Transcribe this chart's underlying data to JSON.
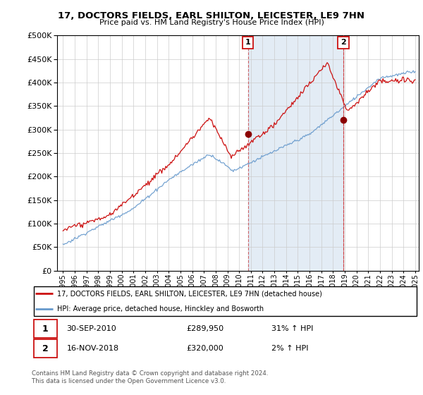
{
  "title": "17, DOCTORS FIELDS, EARL SHILTON, LEICESTER, LE9 7HN",
  "subtitle": "Price paid vs. HM Land Registry's House Price Index (HPI)",
  "legend_line1": "17, DOCTORS FIELDS, EARL SHILTON, LEICESTER, LE9 7HN (detached house)",
  "legend_line2": "HPI: Average price, detached house, Hinckley and Bosworth",
  "annotation1_date": "30-SEP-2010",
  "annotation1_price": "£289,950",
  "annotation1_hpi": "31% ↑ HPI",
  "annotation2_date": "16-NOV-2018",
  "annotation2_price": "£320,000",
  "annotation2_hpi": "2% ↑ HPI",
  "footer": "Contains HM Land Registry data © Crown copyright and database right 2024.\nThis data is licensed under the Open Government Licence v3.0.",
  "hpi_color": "#6699cc",
  "price_color": "#cc1111",
  "marker_color": "#8B0000",
  "vline_color": "#cc4444",
  "marker1_x": 2010.75,
  "marker1_y": 289950,
  "marker2_x": 2018.88,
  "marker2_y": 320000,
  "vline1_x": 2010.75,
  "vline2_x": 2018.88,
  "ylim": [
    0,
    500000
  ],
  "xlim_start": 1994.5,
  "xlim_end": 2025.3
}
